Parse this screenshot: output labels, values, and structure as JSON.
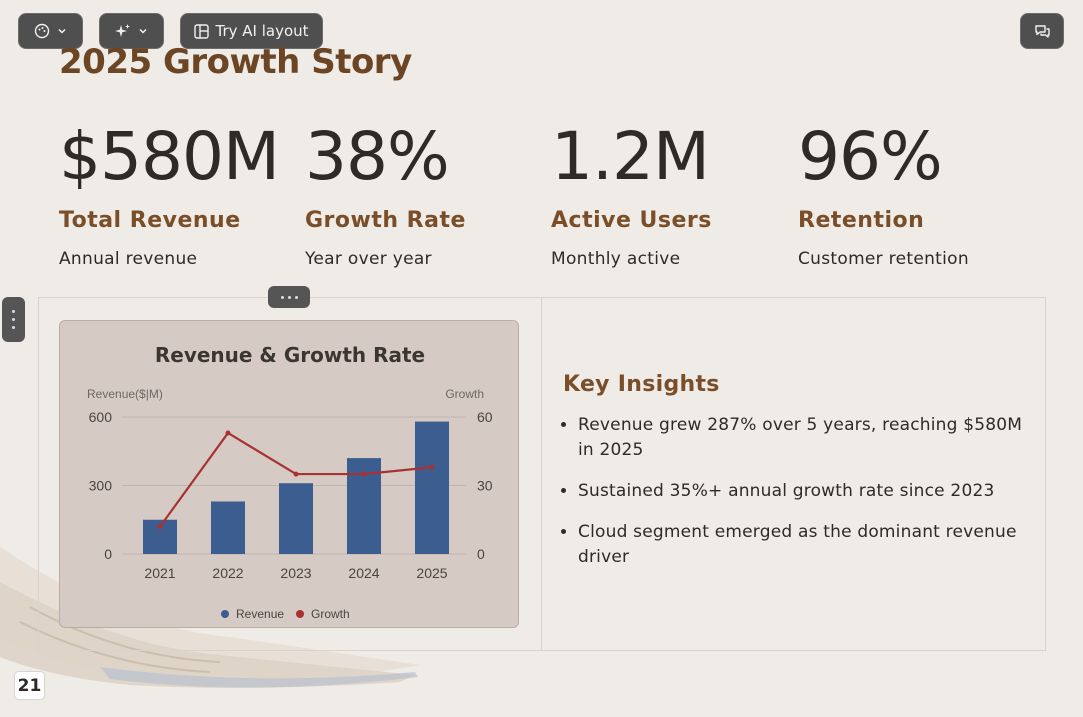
{
  "toolbar": {
    "ai_layout_label": "Try AI layout"
  },
  "slide": {
    "title": "2025 Growth Story",
    "stats": [
      {
        "value": "$580M",
        "label": "Total Revenue",
        "sub": "Annual revenue"
      },
      {
        "value": "38%",
        "label": "Growth Rate",
        "sub": "Year over year"
      },
      {
        "value": "1.2M",
        "label": "Active Users",
        "sub": "Monthly active"
      },
      {
        "value": "96%",
        "label": "Retention",
        "sub": "Customer retention"
      }
    ],
    "insights": {
      "heading": "Key Insights",
      "items": [
        "Revenue grew 287% over 5 years, reaching $580M in 2025",
        "Sustained 35%+ annual growth rate since 2023",
        "Cloud segment emerged as the dominant revenue driver"
      ]
    },
    "page_number": "21"
  },
  "colors": {
    "accent": "#7a4e28",
    "title": "#6b4524",
    "bar": "#3c5d8f",
    "line": "#a83232"
  },
  "chart_data": {
    "type": "bar",
    "title": "Revenue & Growth Rate",
    "categories": [
      "2021",
      "2022",
      "2023",
      "2024",
      "2025"
    ],
    "ylabel_left": "Revenue($|M)",
    "ylabel_right": "Growth",
    "ylim_left": [
      0,
      600
    ],
    "ylim_right": [
      0,
      60
    ],
    "yticks_left": [
      "0",
      "300",
      "600"
    ],
    "yticks_right": [
      "0",
      "30",
      "60"
    ],
    "grid": true,
    "legend_position": "bottom",
    "series": [
      {
        "name": "Revenue",
        "type": "bar",
        "axis": "left",
        "values": [
          150,
          230,
          310,
          420,
          580
        ]
      },
      {
        "name": "Growth",
        "type": "line",
        "axis": "right",
        "values": [
          12,
          53,
          35,
          35,
          38
        ]
      }
    ]
  }
}
